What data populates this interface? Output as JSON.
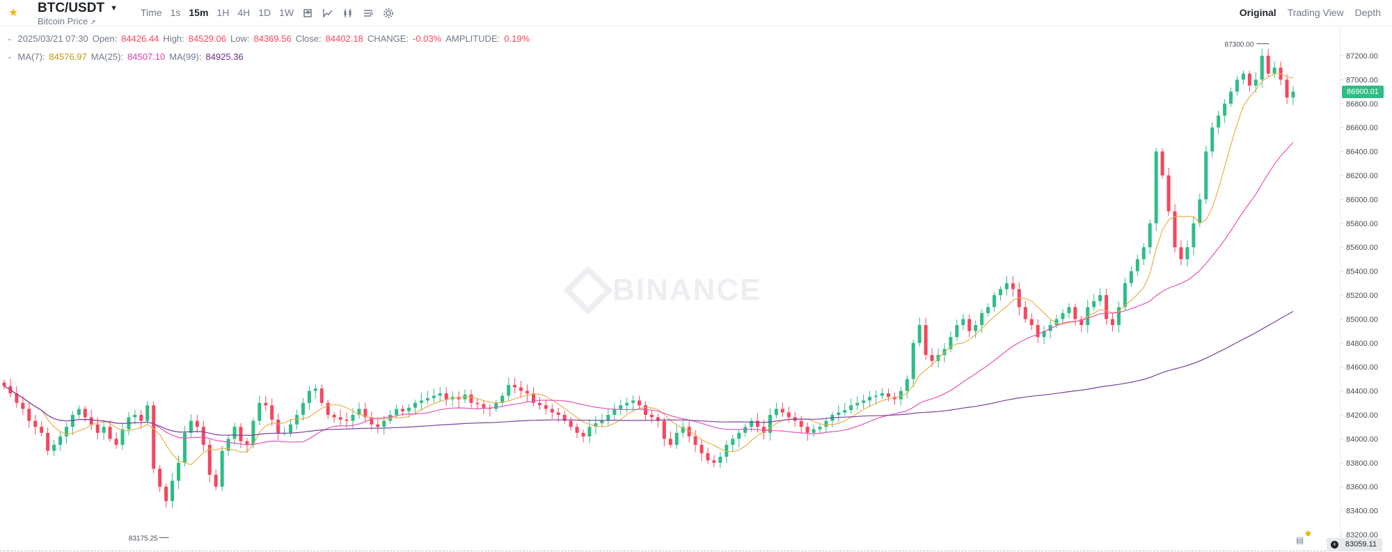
{
  "header": {
    "pair": "BTC/USDT",
    "subtitle": "Bitcoin Price",
    "intervals": [
      {
        "label": "Time",
        "active": false
      },
      {
        "label": "1s",
        "active": false
      },
      {
        "label": "15m",
        "active": true
      },
      {
        "label": "1H",
        "active": false
      },
      {
        "label": "4H",
        "active": false
      },
      {
        "label": "1D",
        "active": false
      },
      {
        "label": "1W",
        "active": false
      }
    ],
    "tools": [
      "candle-type-icon",
      "indicator-icon",
      "chart-style-icon",
      "layout-icon",
      "settings-icon"
    ],
    "views": [
      {
        "label": "Original",
        "active": true
      },
      {
        "label": "Trading View",
        "active": false
      },
      {
        "label": "Depth",
        "active": false
      }
    ]
  },
  "ohlc": {
    "date": "2025/03/21 07:30",
    "open_label": "Open:",
    "open": "84426.44",
    "high_label": "High:",
    "high": "84529.06",
    "low_label": "Low:",
    "low": "84369.56",
    "close_label": "Close:",
    "close": "84402.18",
    "change_label": "CHANGE:",
    "change": "-0.03%",
    "amp_label": "AMPLITUDE:",
    "amp": "0.19%"
  },
  "ma": {
    "ma7_label": "MA(7):",
    "ma7": "84576.97",
    "ma25_label": "MA(25):",
    "ma25": "84507.10",
    "ma99_label": "MA(99):",
    "ma99": "84925.36"
  },
  "price_tag": "86900.01",
  "bottom_tag": "83059.11",
  "watermark": "BINANCE",
  "colors": {
    "up": "#2ebd85",
    "down": "#f6465d",
    "ma7": "#e8b04a",
    "ma25": "#e353b8",
    "ma99": "#7b3fa0"
  },
  "chart_data": {
    "type": "candlestick",
    "y_ticks": [
      "87200.00",
      "87000.00",
      "86800.00",
      "86600.00",
      "86400.00",
      "86200.00",
      "86000.00",
      "85800.00",
      "85600.00",
      "85400.00",
      "85200.00",
      "85000.00",
      "84800.00",
      "84600.00",
      "84400.00",
      "84200.00",
      "84000.00",
      "83800.00",
      "83600.00",
      "83400.00",
      "83200.00"
    ],
    "ylim": [
      83059,
      87500
    ],
    "high_marker": "87300.00",
    "low_marker": "83175.25",
    "close": [
      84440,
      84380,
      84300,
      84250,
      84150,
      84100,
      84050,
      83900,
      83950,
      84020,
      84100,
      84200,
      84250,
      84180,
      84120,
      84050,
      84100,
      84000,
      83950,
      84080,
      84180,
      84200,
      84150,
      84280,
      83750,
      83600,
      83480,
      83650,
      83800,
      84050,
      84150,
      84100,
      83950,
      83700,
      83600,
      83900,
      84000,
      84100,
      83980,
      83950,
      84150,
      84300,
      84280,
      84160,
      84050,
      84050,
      84120,
      84200,
      84300,
      84400,
      84420,
      84300,
      84200,
      84180,
      84160,
      84150,
      84200,
      84250,
      84180,
      84120,
      84100,
      84150,
      84200,
      84250,
      84230,
      84260,
      84300,
      84320,
      84340,
      84360,
      84380,
      84330,
      84350,
      84330,
      84370,
      84300,
      84290,
      84260,
      84250,
      84300,
      84360,
      84450,
      84430,
      84400,
      84380,
      84300,
      84280,
      84250,
      84220,
      84200,
      84150,
      84100,
      84050,
      84020,
      84100,
      84130,
      84150,
      84200,
      84250,
      84280,
      84300,
      84320,
      84280,
      84200,
      84180,
      84150,
      84000,
      83950,
      84050,
      84100,
      84020,
      83950,
      83880,
      83820,
      83800,
      83850,
      83950,
      84000,
      84050,
      84100,
      84150,
      84100,
      84050,
      84200,
      84250,
      84220,
      84180,
      84150,
      84100,
      84050,
      84080,
      84100,
      84150,
      84200,
      84220,
      84240,
      84280,
      84300,
      84320,
      84350,
      84360,
      84380,
      84350,
      84330,
      84400,
      84500,
      84800,
      84950,
      84700,
      84650,
      84700,
      84750,
      84850,
      84950,
      85000,
      84900,
      84950,
      85050,
      85100,
      85200,
      85250,
      85300,
      85250,
      85100,
      85000,
      84950,
      84850,
      84900,
      84950,
      85000,
      85050,
      85100,
      85000,
      84950,
      85100,
      85150,
      85200,
      85000,
      84950,
      85100,
      85300,
      85400,
      85500,
      85600,
      85800,
      86400,
      86200,
      85900,
      85600,
      85500,
      85600,
      85800,
      86000,
      86400,
      86600,
      86700,
      86800,
      86900,
      87000,
      87050,
      86950,
      87000,
      87200,
      87050,
      87100,
      87000,
      86850,
      86900
    ],
    "ma_series_names": [
      "MA(7)",
      "MA(25)",
      "MA(99)"
    ]
  }
}
